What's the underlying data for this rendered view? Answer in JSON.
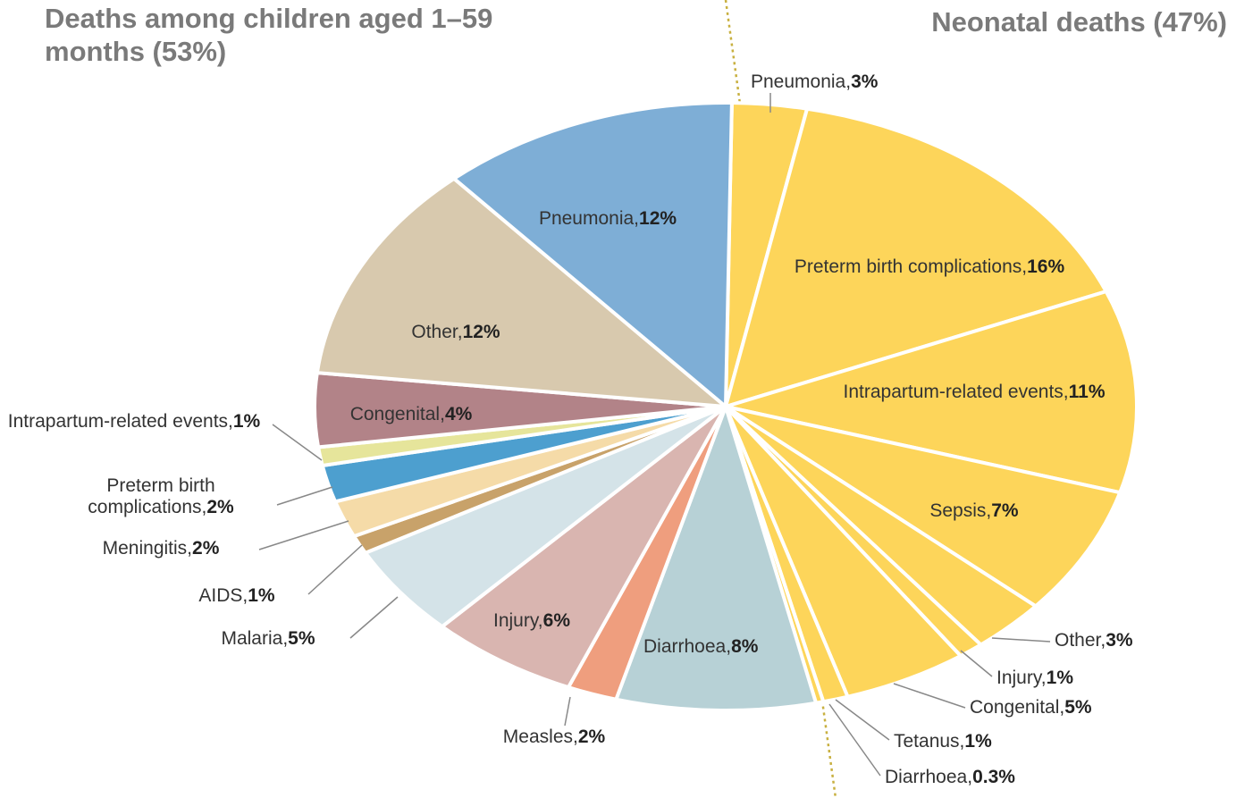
{
  "chart_data": [
    {
      "type": "pie",
      "title": "Neonatal deaths (47%)",
      "categories": [
        "Pneumonia,",
        "Preterm birth complications,",
        "Intrapartum-related events,",
        "Sepsis,",
        "Other,",
        "Injury,",
        "Congenital,",
        "Tetanus,",
        "Diarrhoea,"
      ],
      "values": [
        3,
        16,
        11,
        7,
        3,
        1,
        5,
        1,
        0.3
      ],
      "value_labels": [
        "3%",
        "16%",
        "11%",
        "7%",
        "3%",
        "1%",
        "5%",
        "1%",
        "0.3%"
      ],
      "colors": [
        "#fdd55a",
        "#fdd55a",
        "#fdd55a",
        "#fdd55a",
        "#fdd55a",
        "#fdd55a",
        "#fdd55a",
        "#fdd55a",
        "#fdd55a"
      ]
    },
    {
      "type": "pie",
      "title": "Deaths among children aged 1–59 months (53%)",
      "categories": [
        "Diarrhoea,",
        "Measles,",
        "Injury,",
        "Malaria,",
        "AIDS,",
        "Meningitis,",
        "Preterm birth complications,",
        "Intrapartum-related events,",
        "Congenital,",
        "Other,",
        "Pneumonia,"
      ],
      "values": [
        8,
        2,
        6,
        5,
        1,
        2,
        2,
        1,
        4,
        12,
        12
      ],
      "value_labels": [
        "8%",
        "2%",
        "6%",
        "5%",
        "1%",
        "2%",
        "2%",
        "1%",
        "4%",
        "12%",
        "12%"
      ],
      "colors": [
        "#b7d1d6",
        "#ef9e7e",
        "#d9b5b0",
        "#d4e3e8",
        "#c8a26a",
        "#f5dba8",
        "#4d9fcf",
        "#e6e59b",
        "#b28388",
        "#d8c9ae",
        "#7eaed6"
      ]
    }
  ]
}
